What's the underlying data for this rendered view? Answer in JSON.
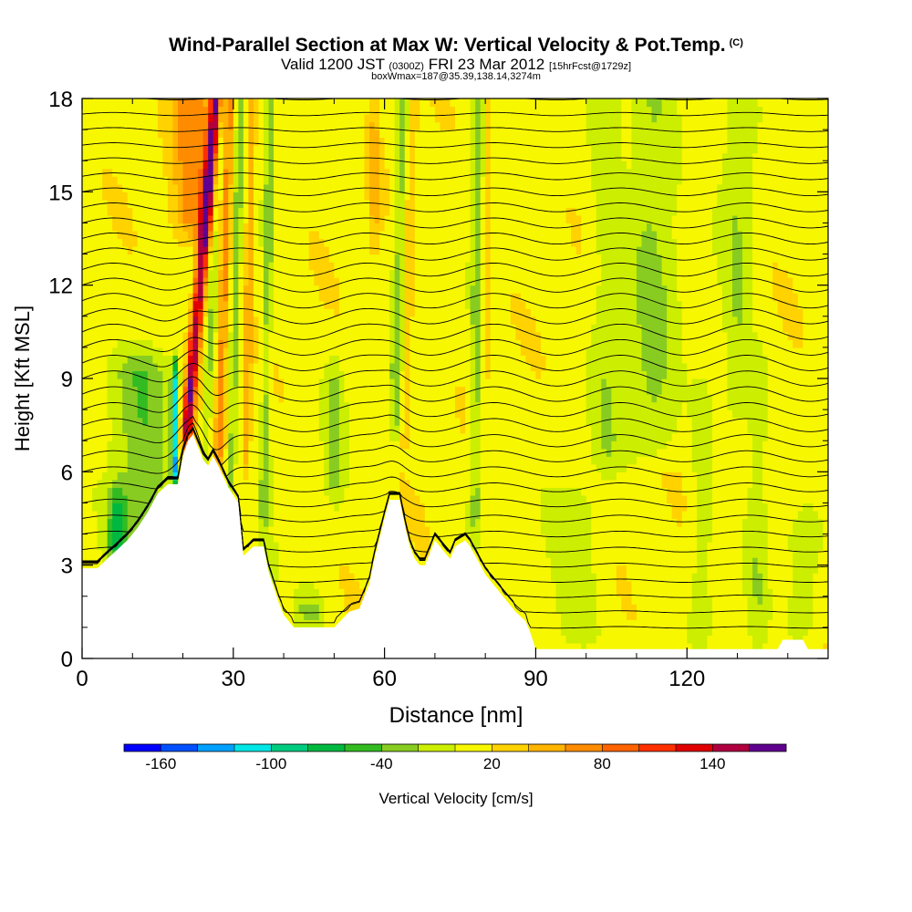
{
  "title": "Wind-Parallel Section at Max W: Vertical Velocity & Pot.Temp.",
  "title_mark": "(C)",
  "subtitle": {
    "valid": "Valid 1200 JST",
    "utc": "(0300Z)",
    "date": "FRI 23 Mar 2012",
    "fcst": "[15hrFcst@1729z]"
  },
  "subtitle2": "boxWmax=187@35.39,138.14,3274m",
  "chart_data": {
    "type": "heatmap",
    "xlabel": "Distance [nm]",
    "ylabel": "Height [Kft MSL]",
    "xlim": [
      0,
      148
    ],
    "ylim": [
      0,
      18
    ],
    "xticks": [
      0,
      30,
      60,
      90,
      120
    ],
    "yticks": [
      0,
      3,
      6,
      9,
      12,
      15,
      18
    ],
    "colorbar": {
      "label": "Vertical Velocity [cm/s]",
      "labels": [
        "-160",
        "-100",
        "-40",
        "20",
        "80",
        "140"
      ],
      "colors": [
        "#0000ff",
        "#0050ff",
        "#00a0ff",
        "#00e6e6",
        "#00cc80",
        "#00b840",
        "#33bb22",
        "#88cc22",
        "#ccee00",
        "#f7f700",
        "#ffd200",
        "#ffb400",
        "#ff8c00",
        "#ff6400",
        "#ff3000",
        "#e00000",
        "#b00040",
        "#600090"
      ]
    },
    "terrain_kft": [
      [
        0,
        2.9
      ],
      [
        3,
        2.9
      ],
      [
        5,
        3.2
      ],
      [
        7,
        3.5
      ],
      [
        9,
        3.8
      ],
      [
        11,
        4.2
      ],
      [
        13,
        4.7
      ],
      [
        15,
        5.3
      ],
      [
        17,
        5.6
      ],
      [
        19,
        5.6
      ],
      [
        20,
        6.5
      ],
      [
        21,
        7.0
      ],
      [
        22,
        7.2
      ],
      [
        24,
        6.4
      ],
      [
        25,
        6.2
      ],
      [
        26,
        6.5
      ],
      [
        27,
        6.2
      ],
      [
        29,
        5.5
      ],
      [
        31,
        5.0
      ],
      [
        32,
        3.3
      ],
      [
        34,
        3.6
      ],
      [
        36,
        3.6
      ],
      [
        37,
        2.8
      ],
      [
        39,
        1.8
      ],
      [
        40,
        1.4
      ],
      [
        42,
        1.0
      ],
      [
        48,
        1.0
      ],
      [
        50,
        1.0
      ],
      [
        53,
        1.5
      ],
      [
        55,
        1.6
      ],
      [
        57,
        2.4
      ],
      [
        58,
        3.2
      ],
      [
        60,
        4.5
      ],
      [
        61,
        5.1
      ],
      [
        63,
        5.1
      ],
      [
        64,
        4.3
      ],
      [
        65,
        3.6
      ],
      [
        66,
        3.2
      ],
      [
        67,
        3.0
      ],
      [
        68,
        3.0
      ],
      [
        70,
        3.8
      ],
      [
        72,
        3.4
      ],
      [
        73,
        3.2
      ],
      [
        74,
        3.6
      ],
      [
        76,
        3.8
      ],
      [
        77,
        3.6
      ],
      [
        78,
        3.3
      ],
      [
        80,
        2.7
      ],
      [
        82,
        2.3
      ],
      [
        84,
        1.9
      ],
      [
        86,
        1.5
      ],
      [
        88,
        1.2
      ],
      [
        89,
        0.8
      ],
      [
        90,
        0.3
      ],
      [
        138,
        0.3
      ],
      [
        139,
        0.6
      ],
      [
        143,
        0.6
      ],
      [
        144,
        0.3
      ],
      [
        148,
        0.3
      ]
    ],
    "w_features": [
      {
        "x": 20.5,
        "zmin": 6.8,
        "zmax": 18.5,
        "w": 150,
        "wx": 1.2,
        "lean": 0.55
      },
      {
        "x": 24.5,
        "zmin": 6.0,
        "zmax": 18.5,
        "w": -30,
        "wx": 0.9,
        "lean": 0.25
      },
      {
        "x": 27.0,
        "zmin": 6.2,
        "zmax": 18.5,
        "w": 60,
        "wx": 0.9,
        "lean": 0.2
      },
      {
        "x": 29.5,
        "zmin": 5.0,
        "zmax": 18.5,
        "w": -40,
        "wx": 0.8,
        "lean": 0.15
      },
      {
        "x": 32.5,
        "zmin": 6.0,
        "zmax": 18.5,
        "w": 40,
        "wx": 0.8,
        "lean": 0.1
      },
      {
        "x": 36.0,
        "zmin": 4.0,
        "zmax": 18.5,
        "w": -40,
        "wx": 1.0,
        "lean": 0.1
      },
      {
        "x": 62.0,
        "zmin": 7.0,
        "zmax": 18.5,
        "w": -40,
        "wx": 1.2,
        "lean": 0.15
      },
      {
        "x": 64.0,
        "zmin": 7.0,
        "zmax": 18.5,
        "w": 25,
        "wx": 1.0,
        "lean": 0.15
      },
      {
        "x": 78.0,
        "zmin": 4.0,
        "zmax": 18.5,
        "w": -40,
        "wx": 1.3,
        "lean": 0.05
      },
      {
        "x": 80.0,
        "zmin": 9.0,
        "zmax": 18.5,
        "w": 25,
        "wx": 1.0,
        "lean": 0.05
      },
      {
        "x": 58.0,
        "zmin": 13.0,
        "zmax": 18.5,
        "w": 30,
        "wx": 1.0,
        "lean": 0.0
      },
      {
        "x": 113.0,
        "zmin": 6.5,
        "zmax": 18.5,
        "w": -35,
        "wx": 5.0,
        "lean": 0.0
      },
      {
        "x": 104.0,
        "zmin": 6.0,
        "zmax": 18.5,
        "w": -25,
        "wx": 3.0,
        "lean": 0.0
      },
      {
        "x": 130.0,
        "zmin": 7.5,
        "zmax": 18.5,
        "w": -30,
        "wx": 3.0,
        "lean": 0.0
      },
      {
        "x": 123.0,
        "zmin": 0.5,
        "zmax": 9.0,
        "w": -25,
        "wx": 2.0,
        "lean": 0.0
      },
      {
        "x": 134.0,
        "zmin": 0.3,
        "zmax": 10.0,
        "w": -25,
        "wx": 2.0,
        "lean": 0.0
      },
      {
        "x": 143.0,
        "zmin": 0.5,
        "zmax": 4.5,
        "w": -30,
        "wx": 3.0,
        "lean": 0.0
      },
      {
        "x": 98.0,
        "zmin": 0.3,
        "zmax": 5.5,
        "w": -25,
        "wx": 5.0,
        "lean": 0.0
      },
      {
        "x": 12.0,
        "zmin": 3.0,
        "zmax": 9.8,
        "w": -45,
        "wx": 6.0,
        "lean": 0.0
      },
      {
        "x": 18.5,
        "zmin": 5.5,
        "zmax": 9.5,
        "w": -120,
        "wx": 0.7,
        "lean": 0.0
      },
      {
        "x": 45.0,
        "zmin": 1.0,
        "zmax": 2.0,
        "w": -45,
        "wx": 3.0,
        "lean": 0.0
      },
      {
        "x": 36.0,
        "zmin": 2.0,
        "zmax": 3.5,
        "w": -30,
        "wx": 2.5,
        "lean": 0.0
      },
      {
        "x": 7.0,
        "zmin": 2.9,
        "zmax": 5.5,
        "w": -60,
        "wx": 2.0,
        "lean": 0.0
      },
      {
        "x": 50.0,
        "zmin": 5.0,
        "zmax": 9.5,
        "w": -35,
        "wx": 2.0,
        "lean": 0.0
      },
      {
        "x": 22.0,
        "zmin": 13.5,
        "zmax": 18.5,
        "w": 60,
        "wx": 4.0,
        "lean": 0.0
      }
    ],
    "isentrope_levels": 36
  }
}
